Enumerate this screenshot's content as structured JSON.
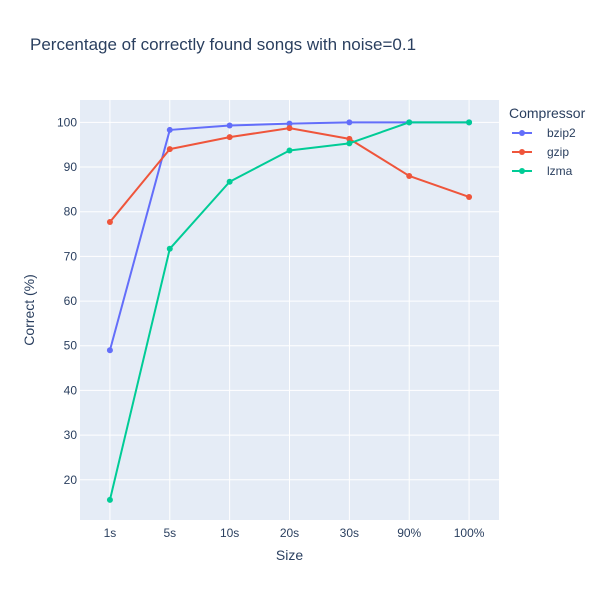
{
  "chart_data": {
    "type": "line",
    "title": "Percentage of correctly found songs with noise=0.1",
    "xlabel": "Size",
    "ylabel": "Correct (%)",
    "categories": [
      "1s",
      "5s",
      "10s",
      "20s",
      "30s",
      "90%",
      "100%"
    ],
    "ylim": [
      11,
      105
    ],
    "yticks": [
      20,
      30,
      40,
      50,
      60,
      70,
      80,
      90,
      100
    ],
    "grid": true,
    "legend": {
      "title": "Compressor",
      "placement": "right"
    },
    "series": [
      {
        "name": "bzip2",
        "color": "#636efa",
        "values": [
          49.0,
          98.3,
          99.3,
          99.7,
          100.0,
          100.0,
          100.0
        ]
      },
      {
        "name": "gzip",
        "color": "#ef553b",
        "values": [
          77.7,
          94.0,
          96.7,
          98.7,
          96.3,
          88.0,
          83.3
        ]
      },
      {
        "name": "lzma",
        "color": "#00cc96",
        "values": [
          15.5,
          71.7,
          86.7,
          93.7,
          95.3,
          100.0,
          100.0
        ]
      }
    ]
  }
}
